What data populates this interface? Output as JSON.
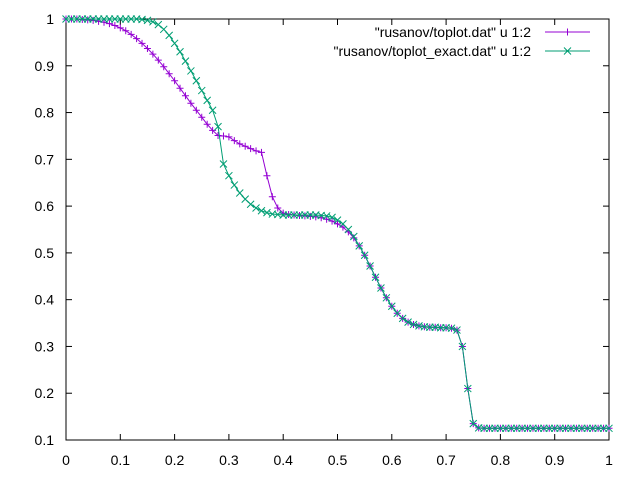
{
  "chart_data": {
    "type": "line",
    "xlim": [
      0,
      1
    ],
    "ylim": [
      0.1,
      1
    ],
    "x_ticks": [
      0,
      0.1,
      0.2,
      0.3,
      0.4,
      0.5,
      0.6,
      0.7,
      0.8,
      0.9,
      1
    ],
    "x_tick_labels": [
      "0",
      "0.1",
      "0.2",
      "0.3",
      "0.4",
      "0.5",
      "0.6",
      "0.7",
      "0.8",
      "0.9",
      "1"
    ],
    "y_ticks": [
      0.1,
      0.2,
      0.3,
      0.4,
      0.5,
      0.6,
      0.7,
      0.8,
      0.9,
      1
    ],
    "y_tick_labels": [
      "0.1",
      "0.2",
      "0.3",
      "0.4",
      "0.5",
      "0.6",
      "0.7",
      "0.8",
      "0.9",
      "1"
    ],
    "grid": false,
    "legend_position": "top-right",
    "series": [
      {
        "name": "\"rusanov/toplot.dat\" u 1:2",
        "color": "#9400d3",
        "marker": "plus",
        "x": [
          0,
          0.01,
          0.02,
          0.03,
          0.04,
          0.05,
          0.06,
          0.07,
          0.08,
          0.09,
          0.1,
          0.11,
          0.12,
          0.13,
          0.14,
          0.15,
          0.16,
          0.17,
          0.18,
          0.19,
          0.2,
          0.21,
          0.22,
          0.23,
          0.24,
          0.25,
          0.26,
          0.27,
          0.28,
          0.29,
          0.3,
          0.31,
          0.32,
          0.33,
          0.34,
          0.35,
          0.36,
          0.37,
          0.38,
          0.39,
          0.4,
          0.41,
          0.42,
          0.43,
          0.44,
          0.45,
          0.46,
          0.47,
          0.48,
          0.49,
          0.5,
          0.51,
          0.52,
          0.53,
          0.54,
          0.55,
          0.56,
          0.57,
          0.58,
          0.59,
          0.6,
          0.61,
          0.62,
          0.63,
          0.64,
          0.65,
          0.66,
          0.67,
          0.68,
          0.69,
          0.7,
          0.71,
          0.72,
          0.73,
          0.74,
          0.75,
          0.76,
          0.77,
          0.78,
          0.79,
          0.8,
          0.81,
          0.82,
          0.83,
          0.84,
          0.85,
          0.86,
          0.87,
          0.88,
          0.89,
          0.9,
          0.91,
          0.92,
          0.93,
          0.94,
          0.95,
          0.96,
          0.97,
          0.98,
          0.99,
          1
        ],
        "y": [
          1.0,
          1.0,
          1.0,
          0.999,
          0.998,
          0.997,
          0.995,
          0.993,
          0.99,
          0.986,
          0.981,
          0.975,
          0.967,
          0.958,
          0.948,
          0.937,
          0.925,
          0.912,
          0.898,
          0.883,
          0.868,
          0.852,
          0.836,
          0.82,
          0.805,
          0.79,
          0.775,
          0.762,
          0.751,
          0.75,
          0.748,
          0.74,
          0.733,
          0.728,
          0.723,
          0.718,
          0.715,
          0.665,
          0.62,
          0.596,
          0.585,
          0.582,
          0.581,
          0.58,
          0.579,
          0.578,
          0.577,
          0.575,
          0.572,
          0.568,
          0.562,
          0.555,
          0.545,
          0.532,
          0.515,
          0.495,
          0.472,
          0.448,
          0.425,
          0.404,
          0.386,
          0.371,
          0.36,
          0.352,
          0.347,
          0.344,
          0.342,
          0.341,
          0.341,
          0.34,
          0.34,
          0.339,
          0.335,
          0.3,
          0.21,
          0.135,
          0.126,
          0.125,
          0.125,
          0.125,
          0.125,
          0.125,
          0.125,
          0.125,
          0.125,
          0.125,
          0.125,
          0.125,
          0.125,
          0.125,
          0.125,
          0.125,
          0.125,
          0.125,
          0.125,
          0.125,
          0.125,
          0.125,
          0.125,
          0.125,
          0.125
        ]
      },
      {
        "name": "\"rusanov/toplot_exact.dat\" u 1:2",
        "color": "#009e73",
        "marker": "cross",
        "x": [
          0,
          0.01,
          0.02,
          0.03,
          0.04,
          0.05,
          0.06,
          0.07,
          0.08,
          0.09,
          0.1,
          0.11,
          0.12,
          0.13,
          0.14,
          0.15,
          0.16,
          0.17,
          0.18,
          0.19,
          0.2,
          0.21,
          0.22,
          0.23,
          0.24,
          0.25,
          0.26,
          0.27,
          0.28,
          0.29,
          0.3,
          0.31,
          0.32,
          0.33,
          0.34,
          0.35,
          0.36,
          0.37,
          0.38,
          0.39,
          0.4,
          0.41,
          0.42,
          0.43,
          0.44,
          0.45,
          0.46,
          0.47,
          0.48,
          0.49,
          0.5,
          0.51,
          0.52,
          0.53,
          0.54,
          0.55,
          0.56,
          0.57,
          0.58,
          0.59,
          0.6,
          0.61,
          0.62,
          0.63,
          0.64,
          0.65,
          0.66,
          0.67,
          0.68,
          0.69,
          0.7,
          0.71,
          0.72,
          0.73,
          0.74,
          0.75,
          0.76,
          0.77,
          0.78,
          0.79,
          0.8,
          0.81,
          0.82,
          0.83,
          0.84,
          0.85,
          0.86,
          0.87,
          0.88,
          0.89,
          0.9,
          0.91,
          0.92,
          0.93,
          0.94,
          0.95,
          0.96,
          0.97,
          0.98,
          0.99,
          1
        ],
        "y": [
          1.0,
          1.0,
          1.0,
          1.0,
          1.0,
          1.0,
          1.0,
          1.0,
          1.0,
          1.0,
          1.0,
          1.0,
          1.0,
          1.0,
          0.999,
          0.997,
          0.994,
          0.988,
          0.978,
          0.965,
          0.948,
          0.93,
          0.91,
          0.889,
          0.868,
          0.847,
          0.826,
          0.805,
          0.77,
          0.69,
          0.665,
          0.645,
          0.628,
          0.615,
          0.604,
          0.596,
          0.59,
          0.586,
          0.583,
          0.582,
          0.581,
          0.581,
          0.581,
          0.581,
          0.581,
          0.581,
          0.581,
          0.58,
          0.579,
          0.576,
          0.57,
          0.562,
          0.55,
          0.535,
          0.515,
          0.495,
          0.472,
          0.448,
          0.425,
          0.404,
          0.386,
          0.371,
          0.36,
          0.352,
          0.347,
          0.344,
          0.342,
          0.341,
          0.341,
          0.34,
          0.34,
          0.339,
          0.335,
          0.3,
          0.21,
          0.135,
          0.126,
          0.125,
          0.125,
          0.125,
          0.125,
          0.125,
          0.125,
          0.125,
          0.125,
          0.125,
          0.125,
          0.125,
          0.125,
          0.125,
          0.125,
          0.125,
          0.125,
          0.125,
          0.125,
          0.125,
          0.125,
          0.125,
          0.125,
          0.125,
          0.125
        ]
      }
    ]
  }
}
